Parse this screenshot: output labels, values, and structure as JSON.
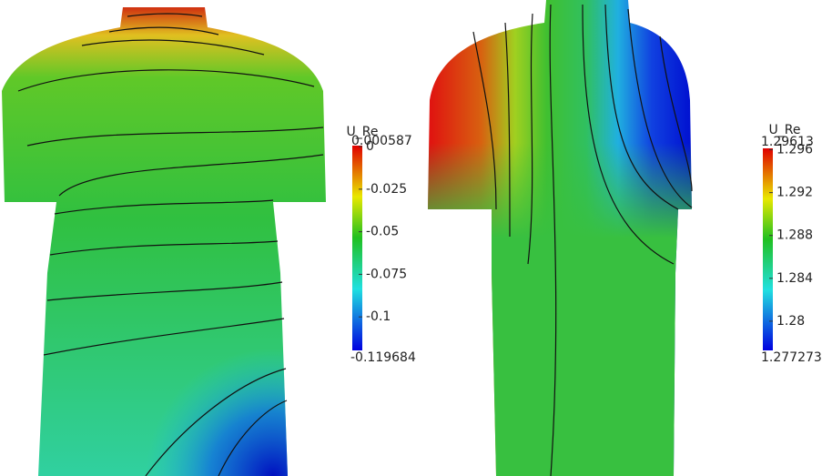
{
  "panels": [
    {
      "colorbar": {
        "title": "U_Re",
        "max_label": 0.000587,
        "min_label": -0.119684,
        "range": [
          -0.119684,
          0.000587
        ],
        "ticks": [
          0,
          -0.025,
          -0.05,
          -0.075,
          -0.1
        ]
      }
    },
    {
      "colorbar": {
        "title": "U_Re",
        "max_label": 1.29613,
        "min_label": 1.277273,
        "range": [
          1.277273,
          1.29613
        ],
        "ticks": [
          1.296,
          1.292,
          1.288,
          1.284,
          1.28
        ]
      }
    }
  ]
}
